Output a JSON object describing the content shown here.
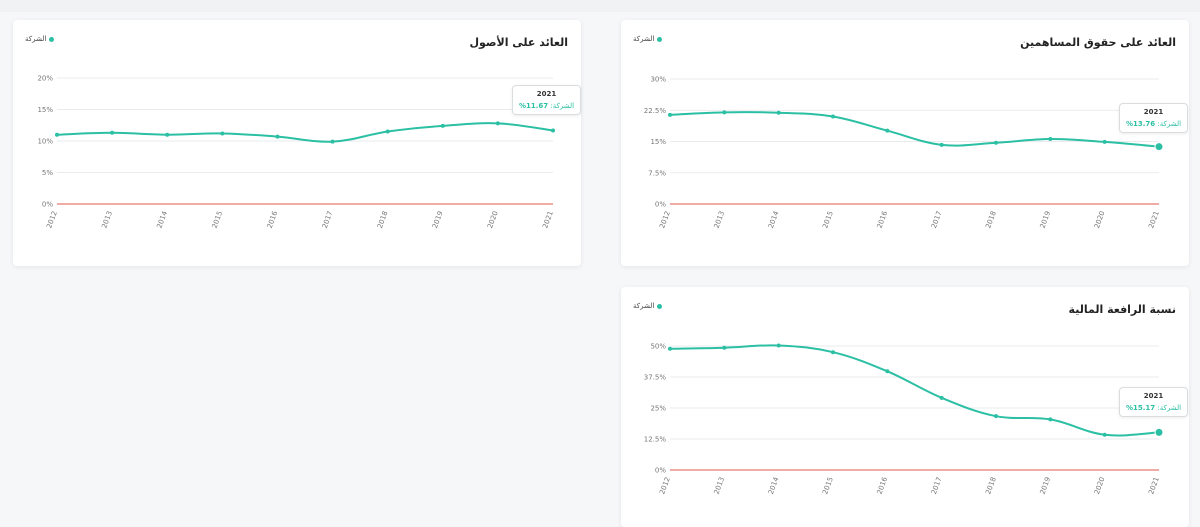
{
  "colors": {
    "series": "#2bbfa4",
    "zero_line": "#e05a4a",
    "grid": "#e3e5e8"
  },
  "legend_label": "الشركة",
  "chart_data": [
    {
      "id": "roa",
      "type": "line",
      "title": "العائد على الأصول",
      "legend": "الشركة",
      "categories": [
        "2012",
        "2013",
        "2014",
        "2015",
        "2016",
        "2017",
        "2018",
        "2019",
        "2020",
        "2021"
      ],
      "series": [
        {
          "name": "الشركة",
          "values": [
            11.0,
            11.3,
            11.0,
            11.2,
            10.7,
            9.9,
            11.5,
            12.4,
            12.8,
            11.67
          ]
        }
      ],
      "yticks": [
        "0%",
        "5%",
        "10%",
        "15%",
        "20%"
      ],
      "ylim": [
        0,
        20
      ],
      "grid": true,
      "legend_position": "top-left",
      "tooltip": {
        "year": "2021",
        "label": "الشركة:",
        "value": "11.67%"
      }
    },
    {
      "id": "roe",
      "type": "line",
      "title": "العائد على حقوق المساهمين",
      "legend": "الشركة",
      "categories": [
        "2012",
        "2013",
        "2014",
        "2015",
        "2016",
        "2017",
        "2018",
        "2019",
        "2020",
        "2021"
      ],
      "series": [
        {
          "name": "الشركة",
          "values": [
            21.4,
            22.0,
            21.9,
            21.0,
            17.6,
            14.2,
            14.7,
            15.6,
            14.9,
            13.76
          ]
        }
      ],
      "yticks": [
        "0%",
        "7.5%",
        "15%",
        "22.5%",
        "30%"
      ],
      "ylim": [
        0,
        30
      ],
      "grid": true,
      "legend_position": "top-left",
      "tooltip": {
        "year": "2021",
        "label": "الشركة:",
        "value": "13.76%"
      }
    },
    {
      "id": "lev",
      "type": "line",
      "title": "نسبة الرافعة المالية",
      "legend": "الشركة",
      "categories": [
        "2012",
        "2013",
        "2014",
        "2015",
        "2016",
        "2017",
        "2018",
        "2019",
        "2020",
        "2021"
      ],
      "series": [
        {
          "name": "الشركة",
          "values": [
            48.9,
            49.3,
            50.2,
            47.5,
            39.8,
            29.1,
            21.7,
            20.4,
            14.2,
            15.17
          ]
        }
      ],
      "yticks": [
        "0%",
        "12.5%",
        "25%",
        "37.5%",
        "50%"
      ],
      "ylim": [
        0,
        50
      ],
      "grid": true,
      "legend_position": "top-left",
      "tooltip": {
        "year": "2021",
        "label": "الشركة:",
        "value": "15.17%"
      }
    }
  ]
}
